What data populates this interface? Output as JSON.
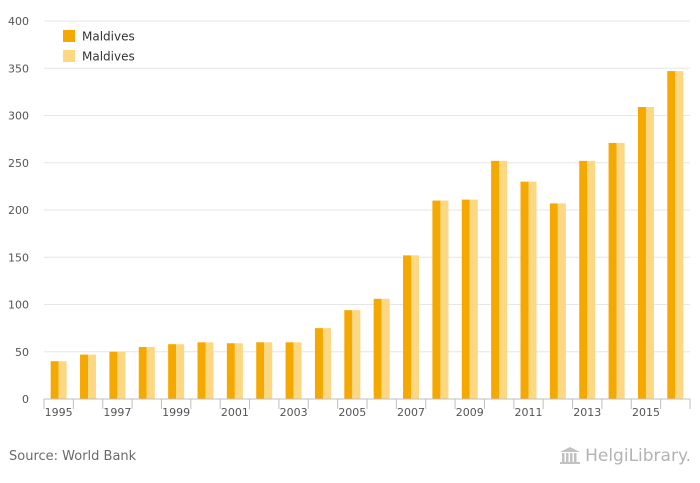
{
  "chart_data": {
    "type": "bar",
    "categories": [
      "1995",
      "1996",
      "1997",
      "1998",
      "1999",
      "2000",
      "2001",
      "2002",
      "2003",
      "2004",
      "2005",
      "2006",
      "2007",
      "2008",
      "2009",
      "2010",
      "2011",
      "2012",
      "2013",
      "2014",
      "2015",
      "2016"
    ],
    "series": [
      {
        "name": "Maldives",
        "color": "#f5a800",
        "values": [
          40,
          47,
          50,
          55,
          58,
          60,
          59,
          60,
          60,
          75,
          94,
          106,
          152,
          210,
          211,
          252,
          230,
          207,
          252,
          271,
          309,
          347
        ]
      },
      {
        "name": "Maldives",
        "color": "#fdd882",
        "values": [
          40,
          47,
          50,
          55,
          58,
          60,
          59,
          60,
          60,
          75,
          94,
          106,
          152,
          210,
          211,
          252,
          230,
          207,
          252,
          271,
          309,
          347
        ]
      }
    ],
    "x_tick_labels": [
      "1995",
      "1997",
      "1999",
      "2001",
      "2003",
      "2005",
      "2007",
      "2009",
      "2011",
      "2013",
      "2015"
    ],
    "y_ticks": [
      0,
      50,
      100,
      150,
      200,
      250,
      300,
      350,
      400
    ],
    "ylim": [
      0,
      400
    ],
    "grid": true,
    "legend_position": "top-left"
  },
  "footer": {
    "source": "Source: World Bank",
    "brand": "HelgiLibrary."
  }
}
